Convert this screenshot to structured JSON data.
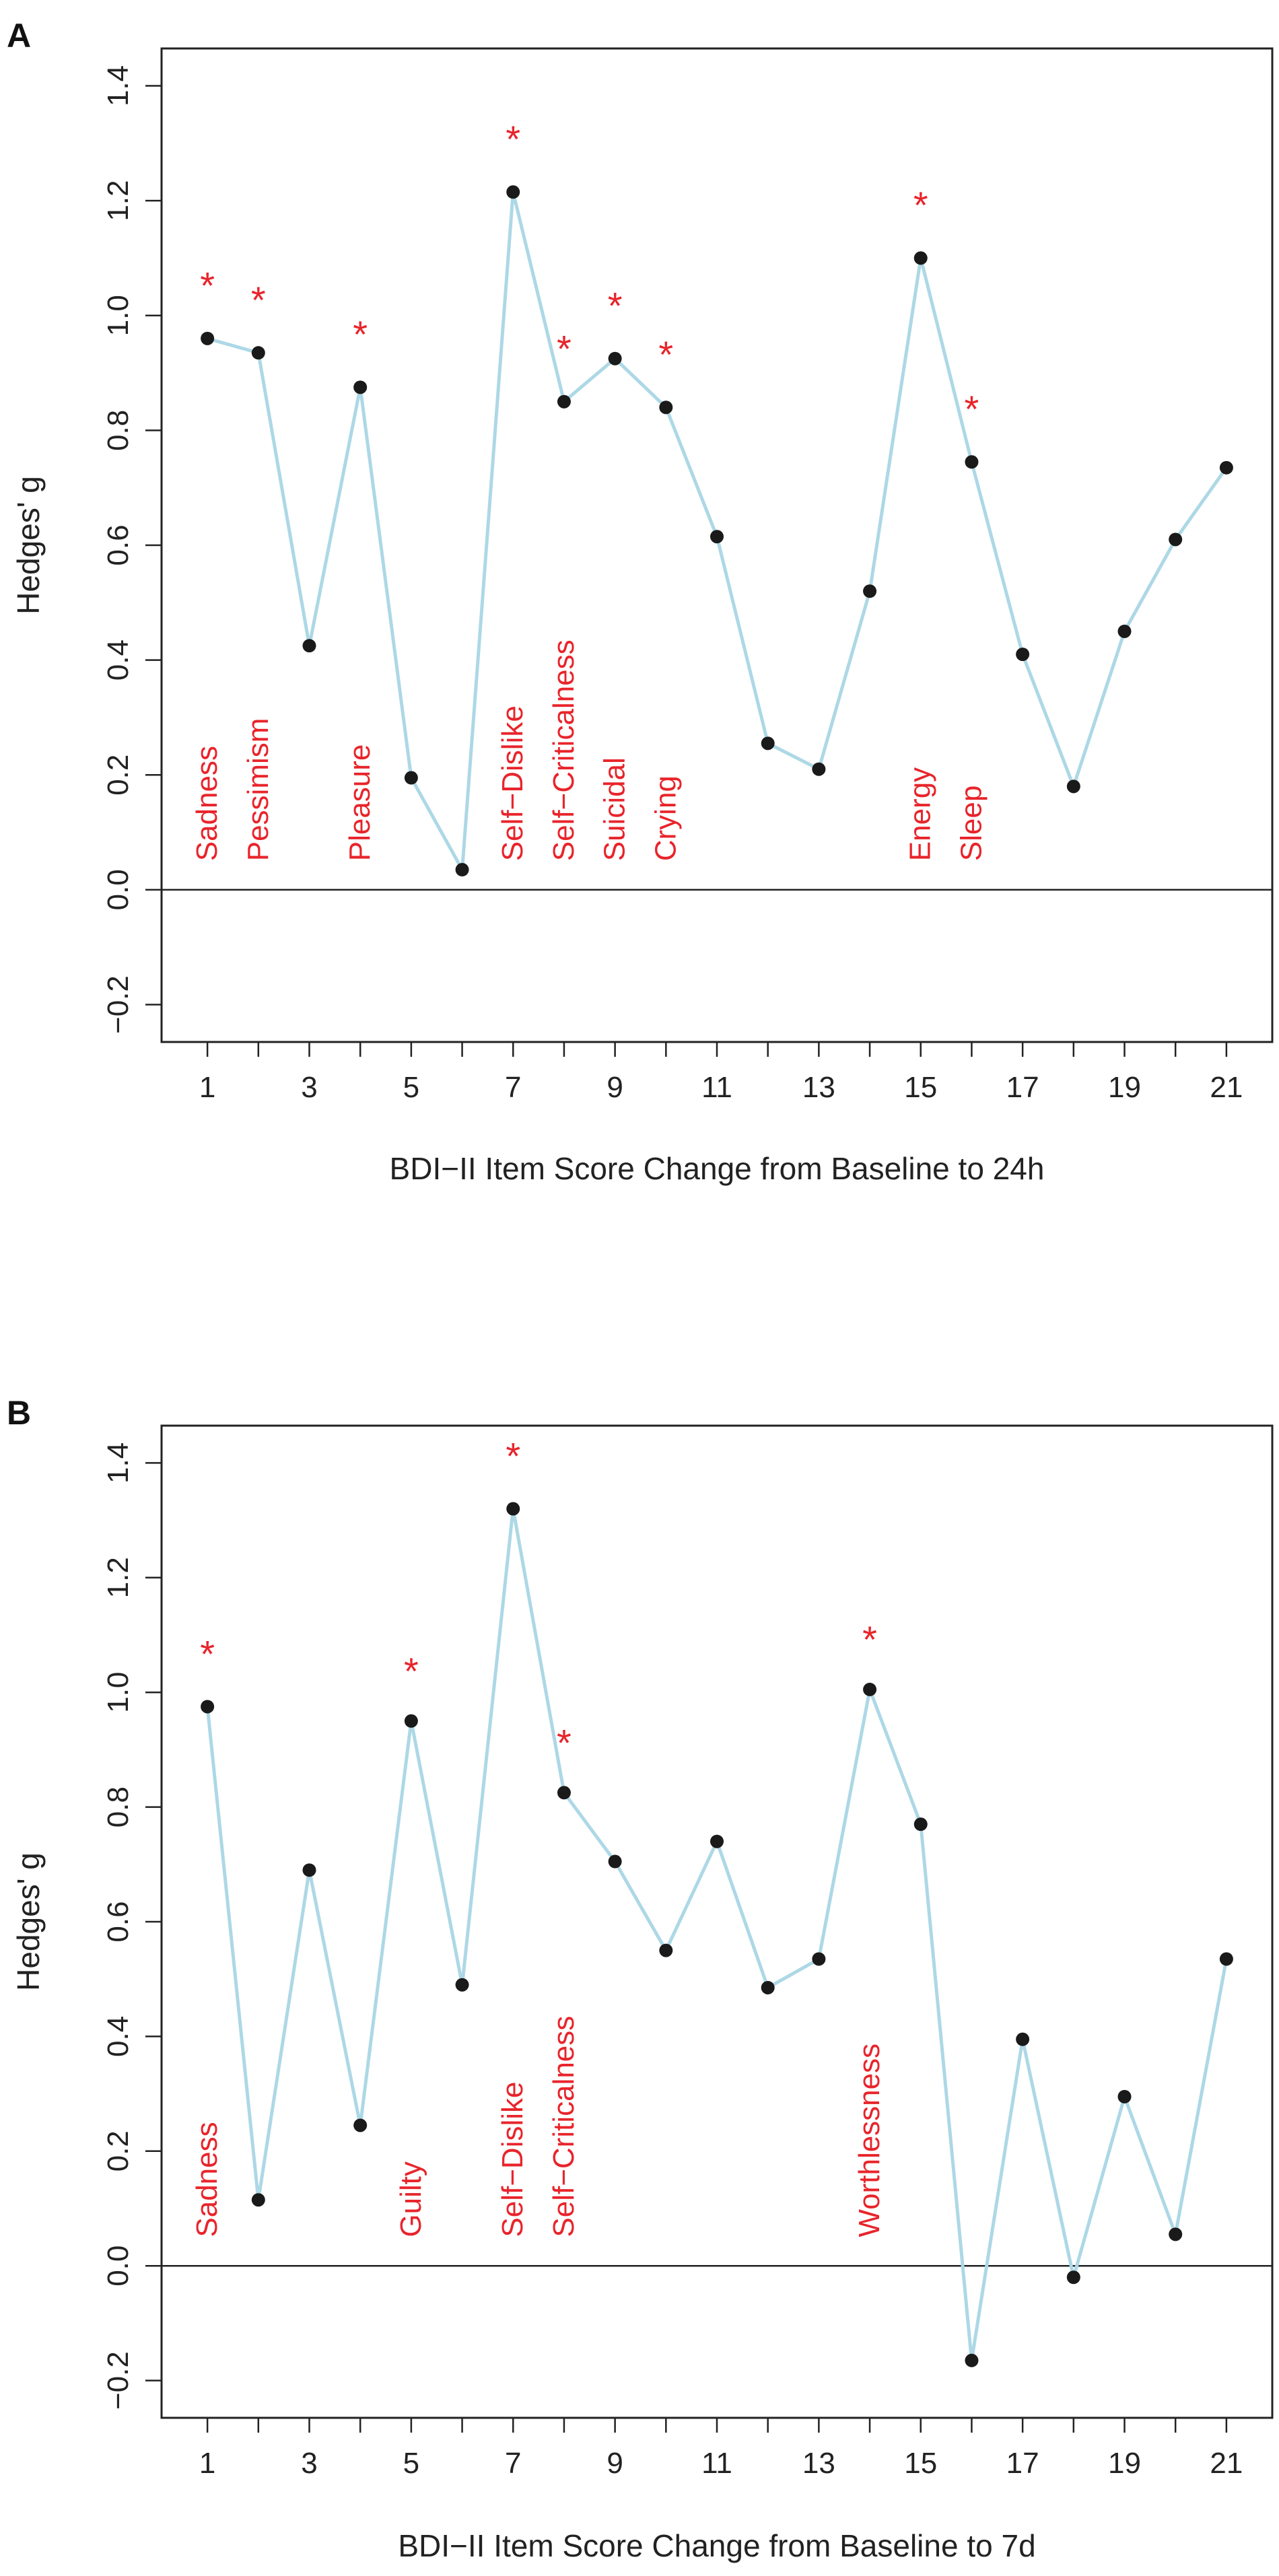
{
  "chart_data": [
    {
      "type": "line",
      "panel": "A",
      "title": "",
      "xlabel": "BDI−II Item Score Change from Baseline to 24h",
      "ylabel": "Hedges' g",
      "x": [
        1,
        2,
        3,
        4,
        5,
        6,
        7,
        8,
        9,
        10,
        11,
        12,
        13,
        14,
        15,
        16,
        17,
        18,
        19,
        20,
        21
      ],
      "values": [
        0.96,
        0.935,
        0.425,
        0.875,
        0.195,
        0.035,
        1.215,
        0.85,
        0.925,
        0.84,
        0.615,
        0.255,
        0.21,
        0.52,
        1.1,
        0.745,
        0.41,
        0.18,
        0.45,
        0.61,
        0.735
      ],
      "xticks": [
        "1",
        "3",
        "5",
        "7",
        "9",
        "11",
        "13",
        "15",
        "17",
        "19",
        "21"
      ],
      "yticks": [
        "−0.2",
        "0.0",
        "0.2",
        "0.4",
        "0.6",
        "0.8",
        "1.0",
        "1.2",
        "1.4"
      ],
      "xlim": [
        0.1,
        21.9
      ],
      "ylim": [
        -0.265,
        1.465
      ],
      "zero_line": 0.0,
      "line_color": "#add8e6",
      "point_color": "#1a1a1a",
      "label_color": "#e8242b",
      "annotations": [
        {
          "x": 1,
          "text": "Sadness",
          "star": 1.06
        },
        {
          "x": 2,
          "text": "Pessimism",
          "star": 1.035
        },
        {
          "x": 4,
          "text": "Pleasure",
          "star": 0.975
        },
        {
          "x": 7,
          "text": "Self−Dislike",
          "star": 1.315
        },
        {
          "x": 8,
          "text": "Self−Criticalness",
          "star": 0.95
        },
        {
          "x": 9,
          "text": "Suicidal",
          "star": 1.025
        },
        {
          "x": 10,
          "text": "Crying",
          "star": 0.94
        },
        {
          "x": 15,
          "text": "Energy",
          "star": 1.2
        },
        {
          "x": 16,
          "text": "Sleep",
          "star": 0.845
        }
      ]
    },
    {
      "type": "line",
      "panel": "B",
      "title": "",
      "xlabel": "BDI−II Item Score Change from Baseline to 7d",
      "ylabel": "Hedges' g",
      "x": [
        1,
        2,
        3,
        4,
        5,
        6,
        7,
        8,
        9,
        10,
        11,
        12,
        13,
        14,
        15,
        16,
        17,
        18,
        19,
        20,
        21
      ],
      "values": [
        0.975,
        0.115,
        0.69,
        0.245,
        0.95,
        0.49,
        1.32,
        0.825,
        0.705,
        0.55,
        0.74,
        0.485,
        0.535,
        1.005,
        0.77,
        -0.165,
        0.395,
        -0.02,
        0.295,
        0.055,
        0.535
      ],
      "xticks": [
        "1",
        "3",
        "5",
        "7",
        "9",
        "11",
        "13",
        "15",
        "17",
        "19",
        "21"
      ],
      "yticks": [
        "−0.2",
        "0.0",
        "0.2",
        "0.4",
        "0.6",
        "0.8",
        "1.0",
        "1.2",
        "1.4"
      ],
      "xlim": [
        0.1,
        21.9
      ],
      "ylim": [
        -0.265,
        1.465
      ],
      "zero_line": 0.0,
      "line_color": "#add8e6",
      "point_color": "#1a1a1a",
      "label_color": "#e8242b",
      "annotations": [
        {
          "x": 1,
          "text": "Sadness",
          "star": 1.075
        },
        {
          "x": 5,
          "text": "Guilty",
          "star": 1.045
        },
        {
          "x": 7,
          "text": "Self−Dislike",
          "star": 1.42
        },
        {
          "x": 8,
          "text": "Self−Criticalness",
          "star": 0.92
        },
        {
          "x": 14,
          "text": "Worthlessness",
          "star": 1.1
        }
      ]
    }
  ],
  "star_symbol": "*"
}
